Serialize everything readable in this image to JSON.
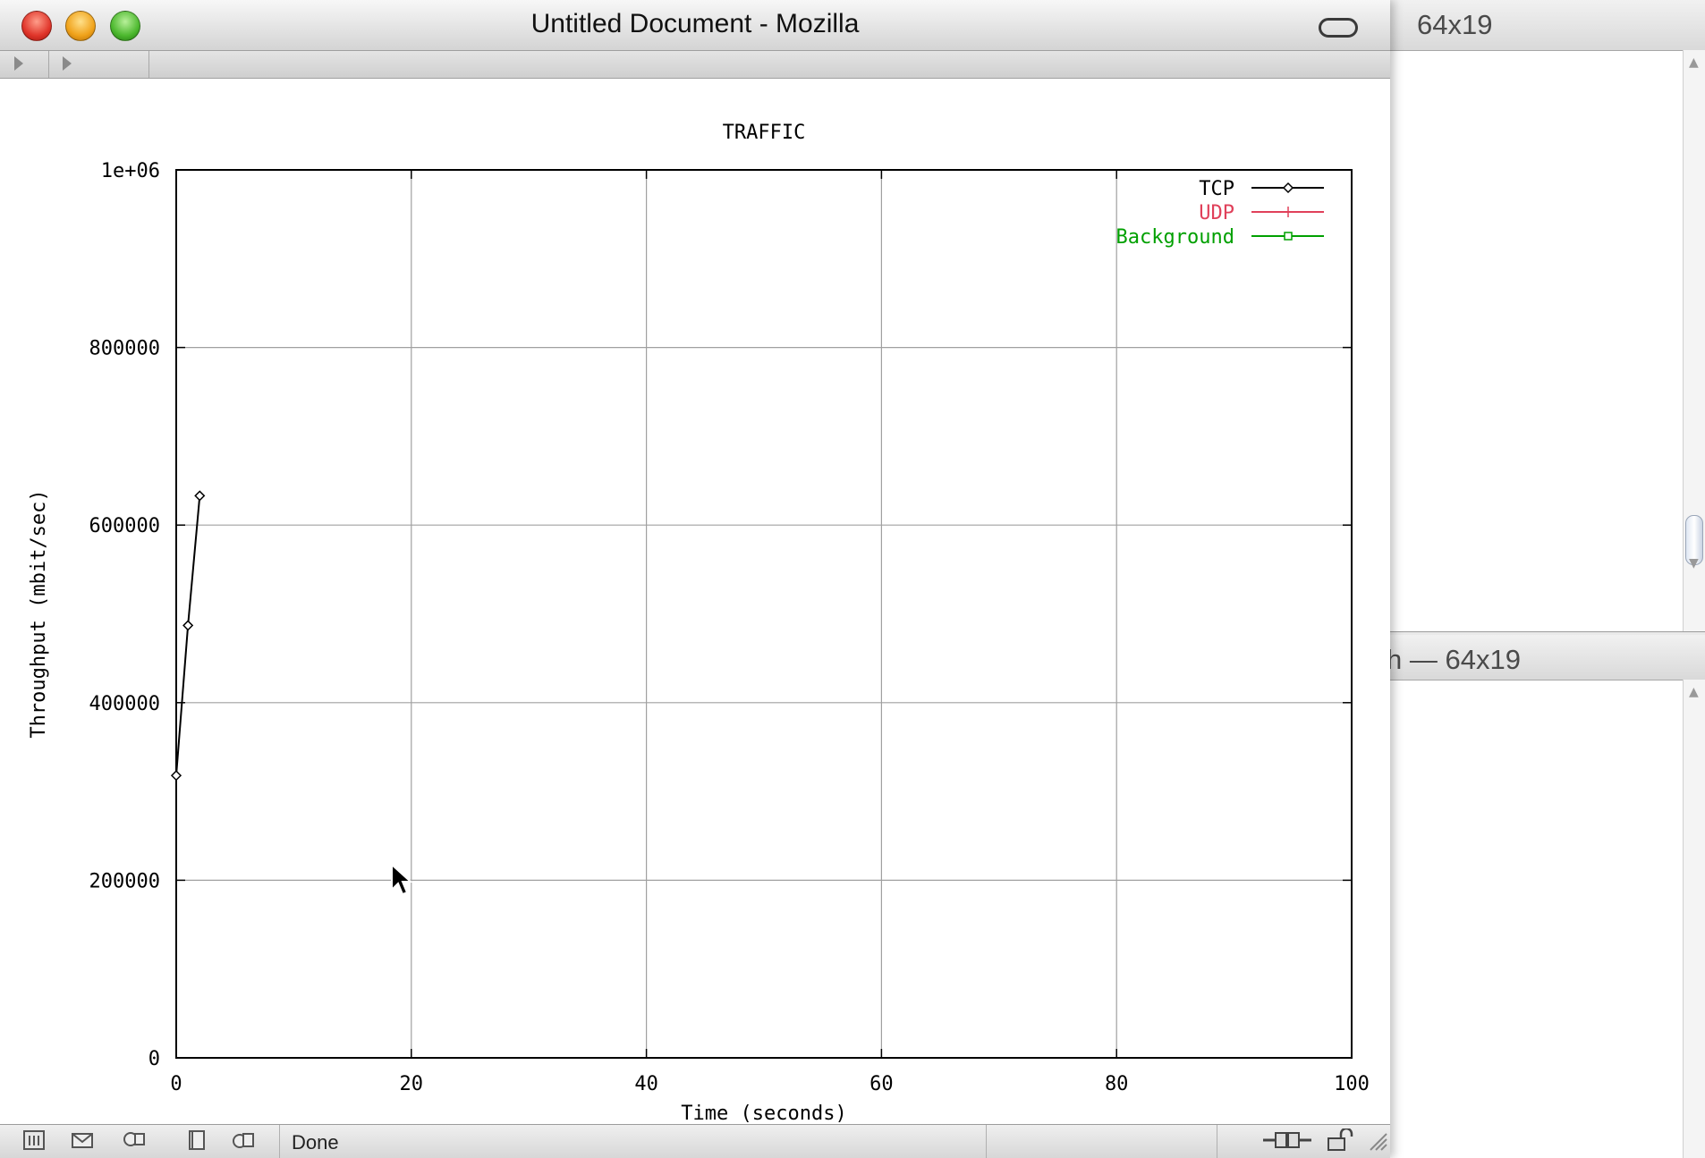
{
  "background_windows": [
    {
      "title": "64x19"
    },
    {
      "title": "h — 64x19"
    }
  ],
  "window": {
    "title": "Untitled Document - Mozilla"
  },
  "statusbar": {
    "status": "Done",
    "icons": [
      "navigator-icon",
      "mail-icon",
      "composer-icon",
      "address-book-icon",
      "irc-chat-icon",
      "online-status-icon",
      "security-lock-icon"
    ]
  },
  "colors": {
    "tcp": "#000000",
    "udp": "#e0405a",
    "background": "#00a000",
    "grid": "#a0a0a0"
  },
  "chart_data": {
    "type": "line",
    "title": "TRAFFIC",
    "xlabel": "Time (seconds)",
    "ylabel": "Throughput (mbit/sec)",
    "xlim": [
      0,
      100
    ],
    "ylim": [
      0,
      1000000
    ],
    "x_ticks": [
      "0",
      "20",
      "40",
      "60",
      "80",
      "100"
    ],
    "y_ticks": [
      "0",
      "200000",
      "400000",
      "600000",
      "800000",
      "1e+06"
    ],
    "grid": true,
    "legend_position": "top-right",
    "series": [
      {
        "name": "TCP",
        "marker": "diamond",
        "x": [
          0,
          1,
          2
        ],
        "y": [
          318000,
          487000,
          633000
        ]
      },
      {
        "name": "UDP",
        "marker": "plus",
        "x": [],
        "y": []
      },
      {
        "name": "Background",
        "marker": "square",
        "x": [],
        "y": []
      }
    ]
  }
}
